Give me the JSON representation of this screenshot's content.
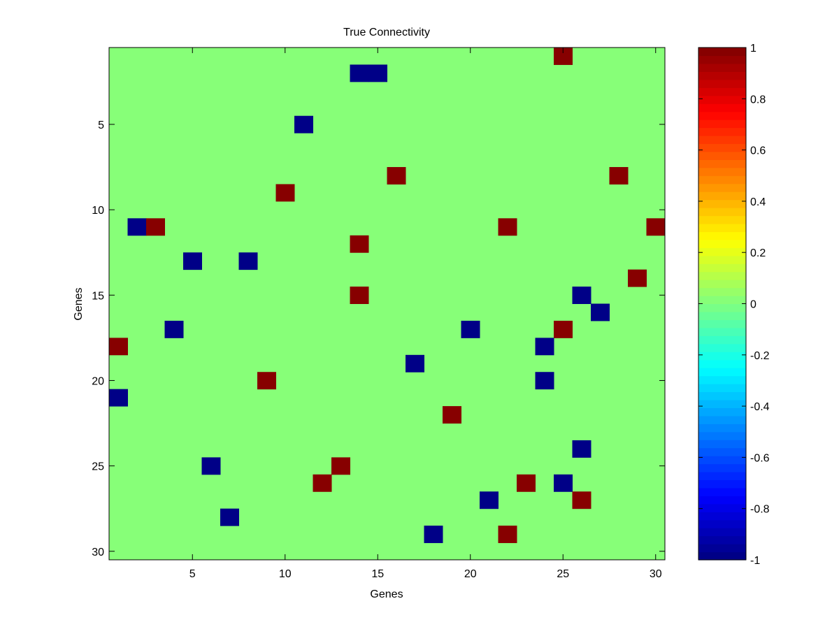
{
  "chart_data": {
    "type": "heatmap",
    "title": "True Connectivity",
    "xlabel": "Genes",
    "ylabel": "Genes",
    "n_rows": 30,
    "n_cols": 30,
    "x_ticks": [
      5,
      10,
      15,
      20,
      25,
      30
    ],
    "y_ticks": [
      5,
      10,
      15,
      20,
      25,
      30
    ],
    "x_tick_labels": [
      "5",
      "10",
      "15",
      "20",
      "25",
      "30"
    ],
    "y_tick_labels": [
      "5",
      "10",
      "15",
      "20",
      "25",
      "30"
    ],
    "grid": false,
    "colormap": "jet",
    "clim": [
      -1,
      1
    ],
    "background_value": 0,
    "colorbar": {
      "location": "right",
      "ticks": [
        1,
        0.8,
        0.6,
        0.4,
        0.2,
        0,
        -0.2,
        -0.4,
        -0.6,
        -0.8,
        -1
      ],
      "tick_labels": [
        "1",
        "0.8",
        "0.6",
        "0.4",
        "0.2",
        "0",
        "-0.2",
        "-0.4",
        "-0.6",
        "-0.8",
        "-1"
      ]
    },
    "cells": [
      {
        "row": 1,
        "col": 25,
        "value": 1
      },
      {
        "row": 2,
        "col": 14,
        "value": -1
      },
      {
        "row": 2,
        "col": 15,
        "value": -1
      },
      {
        "row": 5,
        "col": 11,
        "value": -1
      },
      {
        "row": 8,
        "col": 16,
        "value": 1
      },
      {
        "row": 8,
        "col": 28,
        "value": 1
      },
      {
        "row": 9,
        "col": 10,
        "value": 1
      },
      {
        "row": 11,
        "col": 2,
        "value": -1
      },
      {
        "row": 11,
        "col": 3,
        "value": 1
      },
      {
        "row": 11,
        "col": 22,
        "value": 1
      },
      {
        "row": 11,
        "col": 30,
        "value": 1
      },
      {
        "row": 12,
        "col": 14,
        "value": 1
      },
      {
        "row": 13,
        "col": 5,
        "value": -1
      },
      {
        "row": 13,
        "col": 8,
        "value": -1
      },
      {
        "row": 14,
        "col": 29,
        "value": 1
      },
      {
        "row": 15,
        "col": 14,
        "value": 1
      },
      {
        "row": 15,
        "col": 26,
        "value": -1
      },
      {
        "row": 16,
        "col": 27,
        "value": -1
      },
      {
        "row": 17,
        "col": 4,
        "value": -1
      },
      {
        "row": 17,
        "col": 20,
        "value": -1
      },
      {
        "row": 17,
        "col": 25,
        "value": 1
      },
      {
        "row": 18,
        "col": 1,
        "value": 1
      },
      {
        "row": 18,
        "col": 24,
        "value": -1
      },
      {
        "row": 19,
        "col": 17,
        "value": -1
      },
      {
        "row": 20,
        "col": 9,
        "value": 1
      },
      {
        "row": 20,
        "col": 24,
        "value": -1
      },
      {
        "row": 21,
        "col": 1,
        "value": -1
      },
      {
        "row": 22,
        "col": 19,
        "value": 1
      },
      {
        "row": 24,
        "col": 26,
        "value": -1
      },
      {
        "row": 25,
        "col": 6,
        "value": -1
      },
      {
        "row": 25,
        "col": 13,
        "value": 1
      },
      {
        "row": 26,
        "col": 12,
        "value": 1
      },
      {
        "row": 26,
        "col": 23,
        "value": 1
      },
      {
        "row": 26,
        "col": 25,
        "value": -1
      },
      {
        "row": 27,
        "col": 21,
        "value": -1
      },
      {
        "row": 27,
        "col": 26,
        "value": 1
      },
      {
        "row": 28,
        "col": 7,
        "value": -1
      },
      {
        "row": 29,
        "col": 18,
        "value": -1
      },
      {
        "row": 29,
        "col": 22,
        "value": 1
      }
    ]
  }
}
